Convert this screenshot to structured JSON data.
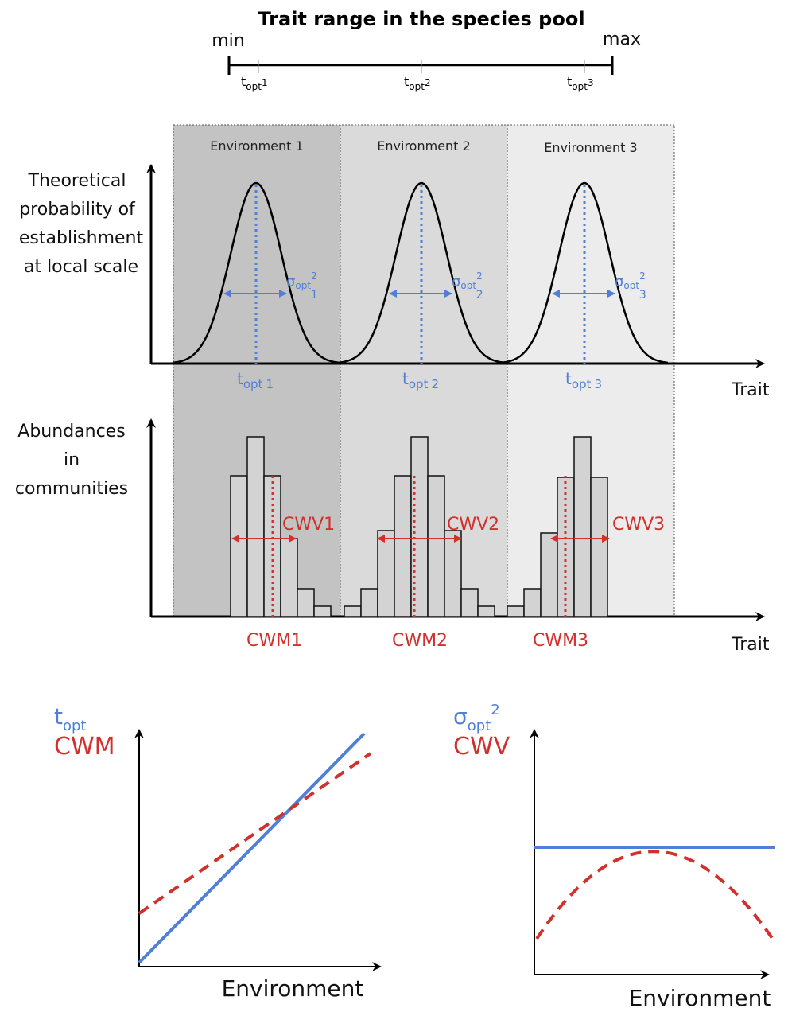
{
  "header": {
    "title": "Trait range in the species pool",
    "min": "min",
    "max": "max",
    "ticks": [
      {
        "base": "t",
        "sub": "opt",
        "index": "1"
      },
      {
        "base": "t",
        "sub": "opt",
        "index": "2"
      },
      {
        "base": "t",
        "sub": "opt",
        "index": "3"
      }
    ]
  },
  "environments": [
    "Environment 1",
    "Environment 2",
    "Environment 3"
  ],
  "top_panel": {
    "y_label": [
      "Theoretical",
      "probability of",
      "establishment",
      "at local scale"
    ],
    "x_label": "Trait",
    "optima": [
      {
        "base": "t",
        "sub": "opt",
        "index": "1"
      },
      {
        "base": "t",
        "sub": "opt",
        "index": "2"
      },
      {
        "base": "t",
        "sub": "opt",
        "index": "3"
      }
    ],
    "widths": [
      {
        "base": "σ",
        "sub": "opt",
        "sup": "2",
        "index": "1"
      },
      {
        "base": "σ",
        "sub": "opt",
        "sup": "2",
        "index": "2"
      },
      {
        "base": "σ",
        "sub": "opt",
        "sup": "2",
        "index": "3"
      }
    ]
  },
  "bottom_panel": {
    "y_label": [
      "Abundances",
      "in",
      "communities"
    ],
    "x_label": "Trait",
    "cwv": [
      "CWV1",
      "CWV2",
      "CWV3"
    ],
    "cwm": [
      "CWM1",
      "CWM2",
      "CWM3"
    ]
  },
  "left_plot": {
    "y_label_top": {
      "base": "t",
      "sub": "opt"
    },
    "y_label_bottom": "CWM",
    "x_label": "Environment"
  },
  "right_plot": {
    "y_label_top": {
      "base": "σ",
      "sub": "opt",
      "sup": "2"
    },
    "y_label_bottom": "CWV",
    "x_label": "Environment"
  }
}
